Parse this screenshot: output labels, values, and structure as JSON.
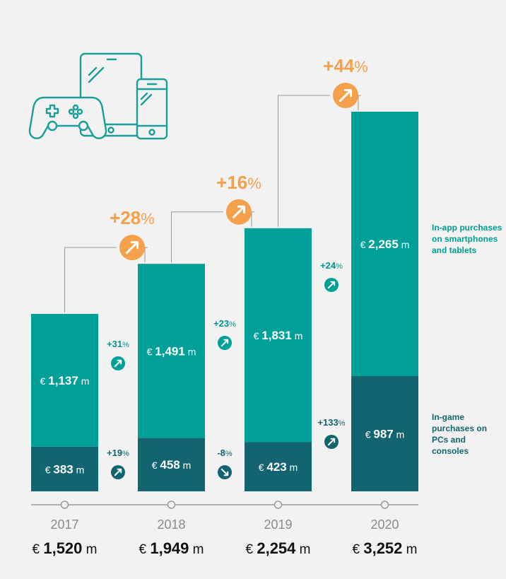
{
  "colors": {
    "in_app": "#00a099",
    "in_game": "#126570",
    "growth_orange": "#f5a04b",
    "teal_text": "#00968f",
    "dark_text": "#126570",
    "axis": "#9a9a9a",
    "year_text": "#8a8a8a",
    "icon_stroke": "#1a9e9a"
  },
  "header_icon": "gaming-devices-icon",
  "legend": {
    "in_app": "In-app purchases on smartphones and tablets",
    "in_game": "In-game purchases on PCs and consoles"
  },
  "chart_data": {
    "type": "bar",
    "stacked": true,
    "categories": [
      "2017",
      "2018",
      "2019",
      "2020"
    ],
    "series": [
      {
        "name": "In-game purchases on PCs and consoles",
        "values": [
          383,
          458,
          423,
          987
        ]
      },
      {
        "name": "In-app purchases on smartphones and tablets",
        "values": [
          1137,
          1491,
          1831,
          2265
        ]
      }
    ],
    "bar_labels": {
      "in_game": [
        "€ 383 m",
        "€ 458 m",
        "€ 423 m",
        "€ 987 m"
      ],
      "in_app": [
        "€ 1,137 m",
        "€ 1,491 m",
        "€ 1,831 m",
        "€ 2,265 m"
      ]
    },
    "totals": [
      1520,
      1949,
      2254,
      3252
    ],
    "total_labels": [
      {
        "cur": "€",
        "num": "1,520",
        "unit": "m"
      },
      {
        "cur": "€",
        "num": "1,949",
        "unit": "m"
      },
      {
        "cur": "€",
        "num": "2,254",
        "unit": "m"
      },
      {
        "cur": "€",
        "num": "3,252",
        "unit": "m"
      }
    ],
    "total_growth": [
      {
        "num": "+28",
        "pct": "%",
        "direction": "up"
      },
      {
        "num": "+16",
        "pct": "%",
        "direction": "up"
      },
      {
        "num": "+44",
        "pct": "%",
        "direction": "up"
      }
    ],
    "in_app_growth": [
      {
        "num": "+31",
        "pct": "%",
        "direction": "up"
      },
      {
        "num": "+23",
        "pct": "%",
        "direction": "up"
      },
      {
        "num": "+24",
        "pct": "%",
        "direction": "up"
      }
    ],
    "in_game_growth": [
      {
        "num": "+19",
        "pct": "%",
        "direction": "up"
      },
      {
        "num": "-8",
        "pct": "%",
        "direction": "down"
      },
      {
        "num": "+133",
        "pct": "%",
        "direction": "up"
      }
    ],
    "ylim": [
      0,
      3252
    ],
    "grid": false,
    "legend_position": "right"
  }
}
